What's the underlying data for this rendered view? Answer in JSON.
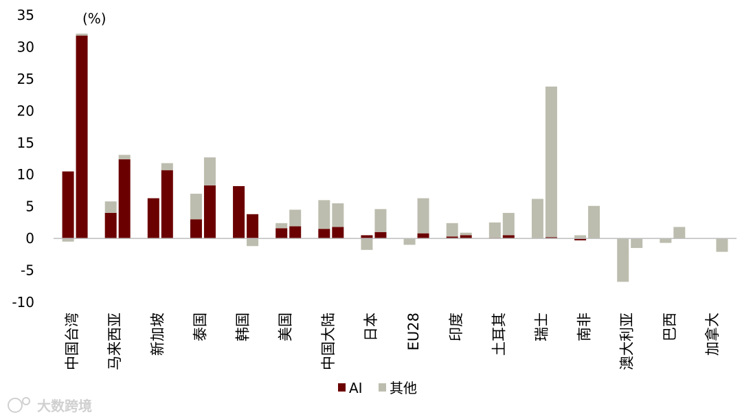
{
  "chart_data": {
    "type": "bar",
    "unit_label": "(%)",
    "ylim": [
      -10,
      35
    ],
    "yticks": [
      -10,
      -5,
      0,
      5,
      10,
      15,
      20,
      25,
      30,
      35
    ],
    "categories": [
      "中国台湾",
      "马来西亚",
      "新加坡",
      "泰国",
      "韩国",
      "美国",
      "中国大陆",
      "日本",
      "EU28",
      "印度",
      "土耳其",
      "瑞士",
      "南非",
      "澳大利亚",
      "巴西",
      "加拿大"
    ],
    "series": [
      {
        "name": "AI",
        "color": "#6b0000"
      },
      {
        "name": "其他",
        "color": "#bdbdaf"
      }
    ],
    "bars": [
      [
        {
          "ai": 10.5,
          "other": -0.5
        },
        {
          "ai": 31.8,
          "other": 0.3
        }
      ],
      [
        {
          "ai": 4.0,
          "other": 1.8
        },
        {
          "ai": 12.4,
          "other": 0.7
        }
      ],
      [
        {
          "ai": 6.3,
          "other": 0.0
        },
        {
          "ai": 10.7,
          "other": 1.1
        }
      ],
      [
        {
          "ai": 3.0,
          "other": 4.0
        },
        {
          "ai": 8.3,
          "other": 4.4
        }
      ],
      [
        {
          "ai": 8.2,
          "other": 0.0
        },
        {
          "ai": 3.8,
          "other": -1.2
        }
      ],
      [
        {
          "ai": 1.6,
          "other": 0.8
        },
        {
          "ai": 1.9,
          "other": 2.6
        }
      ],
      [
        {
          "ai": 1.5,
          "other": 4.5
        },
        {
          "ai": 1.8,
          "other": 3.7
        }
      ],
      [
        {
          "ai": 0.5,
          "other": -1.8
        },
        {
          "ai": 1.0,
          "other": 3.6
        }
      ],
      [
        {
          "ai": 0.0,
          "other": -1.0
        },
        {
          "ai": 0.8,
          "other": 5.5
        }
      ],
      [
        {
          "ai": 0.3,
          "other": 2.1
        },
        {
          "ai": 0.5,
          "other": 0.4
        }
      ],
      [
        {
          "ai": 0.1,
          "other": 2.4
        },
        {
          "ai": 0.5,
          "other": 3.5
        }
      ],
      [
        {
          "ai": 0.0,
          "other": 6.2
        },
        {
          "ai": 0.2,
          "other": 23.6
        }
      ],
      [
        {
          "ai": -0.3,
          "other": 0.5
        },
        {
          "ai": 0.0,
          "other": 5.1
        }
      ],
      [
        {
          "ai": 0.0,
          "other": -6.8
        },
        {
          "ai": 0.0,
          "other": -1.5
        }
      ],
      [
        {
          "ai": 0.0,
          "other": -0.7
        },
        {
          "ai": 0.0,
          "other": 1.8
        }
      ],
      [
        {
          "ai": 0.0,
          "other": 0.0
        },
        {
          "ai": 0.0,
          "other": -2.1
        }
      ]
    ],
    "legend_position": "bottom-center",
    "grid": false
  },
  "legend": {
    "ai_label": "AI",
    "other_label": "其他"
  },
  "watermark": {
    "text": "大数跨境"
  }
}
